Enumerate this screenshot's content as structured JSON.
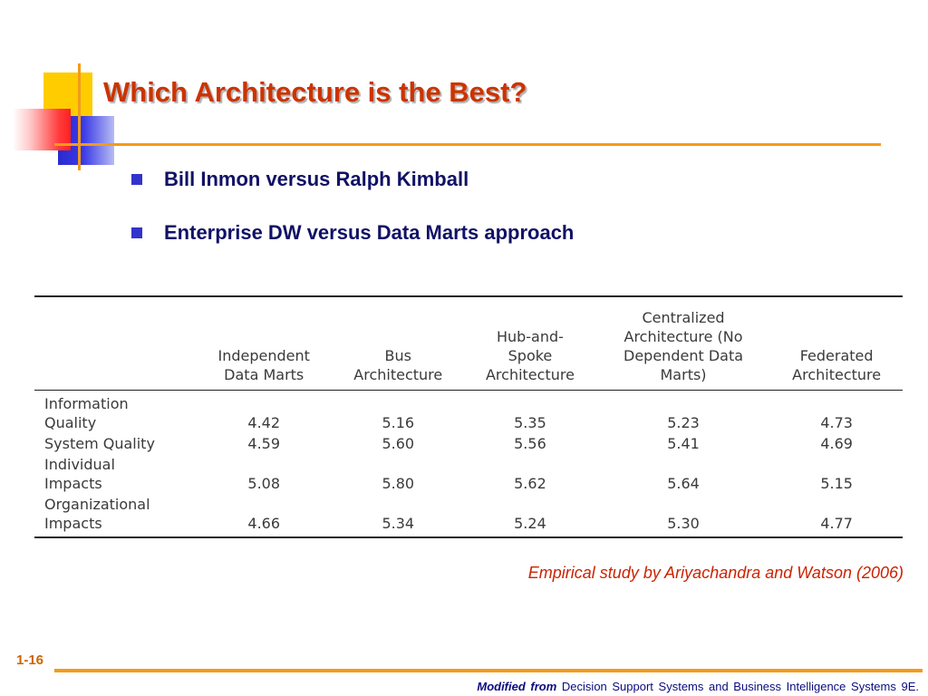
{
  "slide": {
    "title": "Which Architecture is the Best?",
    "bullets": [
      "Bill Inmon versus Ralph Kimball",
      "Enterprise DW versus Data Marts approach"
    ]
  },
  "table": {
    "columns": [
      "Independent\nData Marts",
      "Bus\nArchitecture",
      "Hub-and-\nSpoke\nArchitecture",
      "Centralized\nArchitecture (No\nDependent Data\nMarts)",
      "Federated\nArchitecture"
    ],
    "rows": [
      {
        "label": "Information\nQuality",
        "values": [
          "4.42",
          "5.16",
          "5.35",
          "5.23",
          "4.73"
        ]
      },
      {
        "label": "System Quality",
        "values": [
          "4.59",
          "5.60",
          "5.56",
          "5.41",
          "4.69"
        ]
      },
      {
        "label": "Individual\nImpacts",
        "values": [
          "5.08",
          "5.80",
          "5.62",
          "5.64",
          "5.15"
        ]
      },
      {
        "label": "Organizational\nImpacts",
        "values": [
          "4.66",
          "5.34",
          "5.24",
          "5.30",
          "4.77"
        ]
      }
    ]
  },
  "caption": "Empirical study by Ariyachandra and Watson (2006)",
  "footer": {
    "page_number": "1-16",
    "modified_prefix": "Modified from",
    "source": "Decision Support Systems and Business Intelligence Systems 9E."
  },
  "colors": {
    "title": "#cc3300",
    "accent_orange": "#f49a1a",
    "bullet_square": "#3333cc",
    "bullet_text": "#111166",
    "caption": "#cc2200",
    "footer_text": "#0b0b80"
  }
}
